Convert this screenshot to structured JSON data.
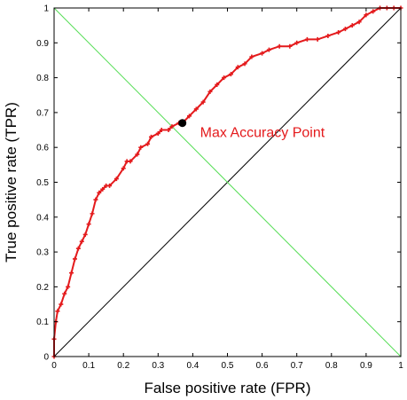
{
  "chart_data": {
    "type": "line",
    "title": "",
    "xlabel": "False positive rate (FPR)",
    "ylabel": "True positive rate (TPR)",
    "xlim": [
      0,
      1
    ],
    "ylim": [
      0,
      1
    ],
    "x_ticks": [
      0,
      0.1,
      0.2,
      0.3,
      0.4,
      0.5,
      0.6,
      0.7,
      0.8,
      0.9,
      1
    ],
    "y_ticks": [
      0,
      0.1,
      0.2,
      0.3,
      0.4,
      0.5,
      0.6,
      0.7,
      0.8,
      0.9,
      1
    ],
    "x_tick_labels": [
      "0",
      "0.1",
      "0.2",
      "0.3",
      "0.4",
      "0.5",
      "0.6",
      "0.7",
      "0.8",
      "0.9",
      "1"
    ],
    "y_tick_labels": [
      "0",
      "0.1",
      "0.2",
      "0.3",
      "0.4",
      "0.5",
      "0.6",
      "0.7",
      "0.8",
      "0.9",
      "1"
    ],
    "grid": false,
    "legend": "none",
    "series": [
      {
        "role": "roc-curve",
        "color": "#e41a1c",
        "marker": "plus",
        "x": [
          0,
          0,
          0.005,
          0.01,
          0.02,
          0.03,
          0.04,
          0.05,
          0.06,
          0.07,
          0.08,
          0.09,
          0.1,
          0.11,
          0.12,
          0.13,
          0.14,
          0.15,
          0.16,
          0.18,
          0.2,
          0.21,
          0.22,
          0.24,
          0.25,
          0.27,
          0.28,
          0.3,
          0.31,
          0.33,
          0.34,
          0.36,
          0.37,
          0.39,
          0.41,
          0.43,
          0.45,
          0.47,
          0.49,
          0.51,
          0.53,
          0.55,
          0.57,
          0.6,
          0.62,
          0.65,
          0.68,
          0.7,
          0.73,
          0.76,
          0.79,
          0.82,
          0.84,
          0.86,
          0.88,
          0.9,
          0.92,
          0.94,
          0.96,
          0.98,
          1
        ],
        "y": [
          0,
          0.05,
          0.1,
          0.13,
          0.15,
          0.18,
          0.2,
          0.24,
          0.28,
          0.31,
          0.33,
          0.35,
          0.38,
          0.41,
          0.45,
          0.47,
          0.48,
          0.49,
          0.49,
          0.51,
          0.54,
          0.56,
          0.56,
          0.58,
          0.6,
          0.61,
          0.63,
          0.64,
          0.65,
          0.65,
          0.66,
          0.67,
          0.67,
          0.69,
          0.71,
          0.73,
          0.76,
          0.78,
          0.8,
          0.81,
          0.83,
          0.84,
          0.86,
          0.87,
          0.88,
          0.89,
          0.89,
          0.9,
          0.91,
          0.91,
          0.92,
          0.93,
          0.94,
          0.95,
          0.96,
          0.98,
          0.99,
          1,
          1,
          1,
          1
        ]
      },
      {
        "role": "chance-diagonal",
        "color": "#000000",
        "x": [
          0,
          1
        ],
        "y": [
          0,
          1
        ]
      },
      {
        "role": "anti-diagonal",
        "color": "#55dd55",
        "x": [
          0,
          1
        ],
        "y": [
          1,
          0
        ]
      }
    ],
    "annotations": [
      {
        "text": "Max Accuracy Point",
        "color": "#e41a1c",
        "point_x": 0.37,
        "point_y": 0.67,
        "point_color": "#000000"
      }
    ]
  }
}
